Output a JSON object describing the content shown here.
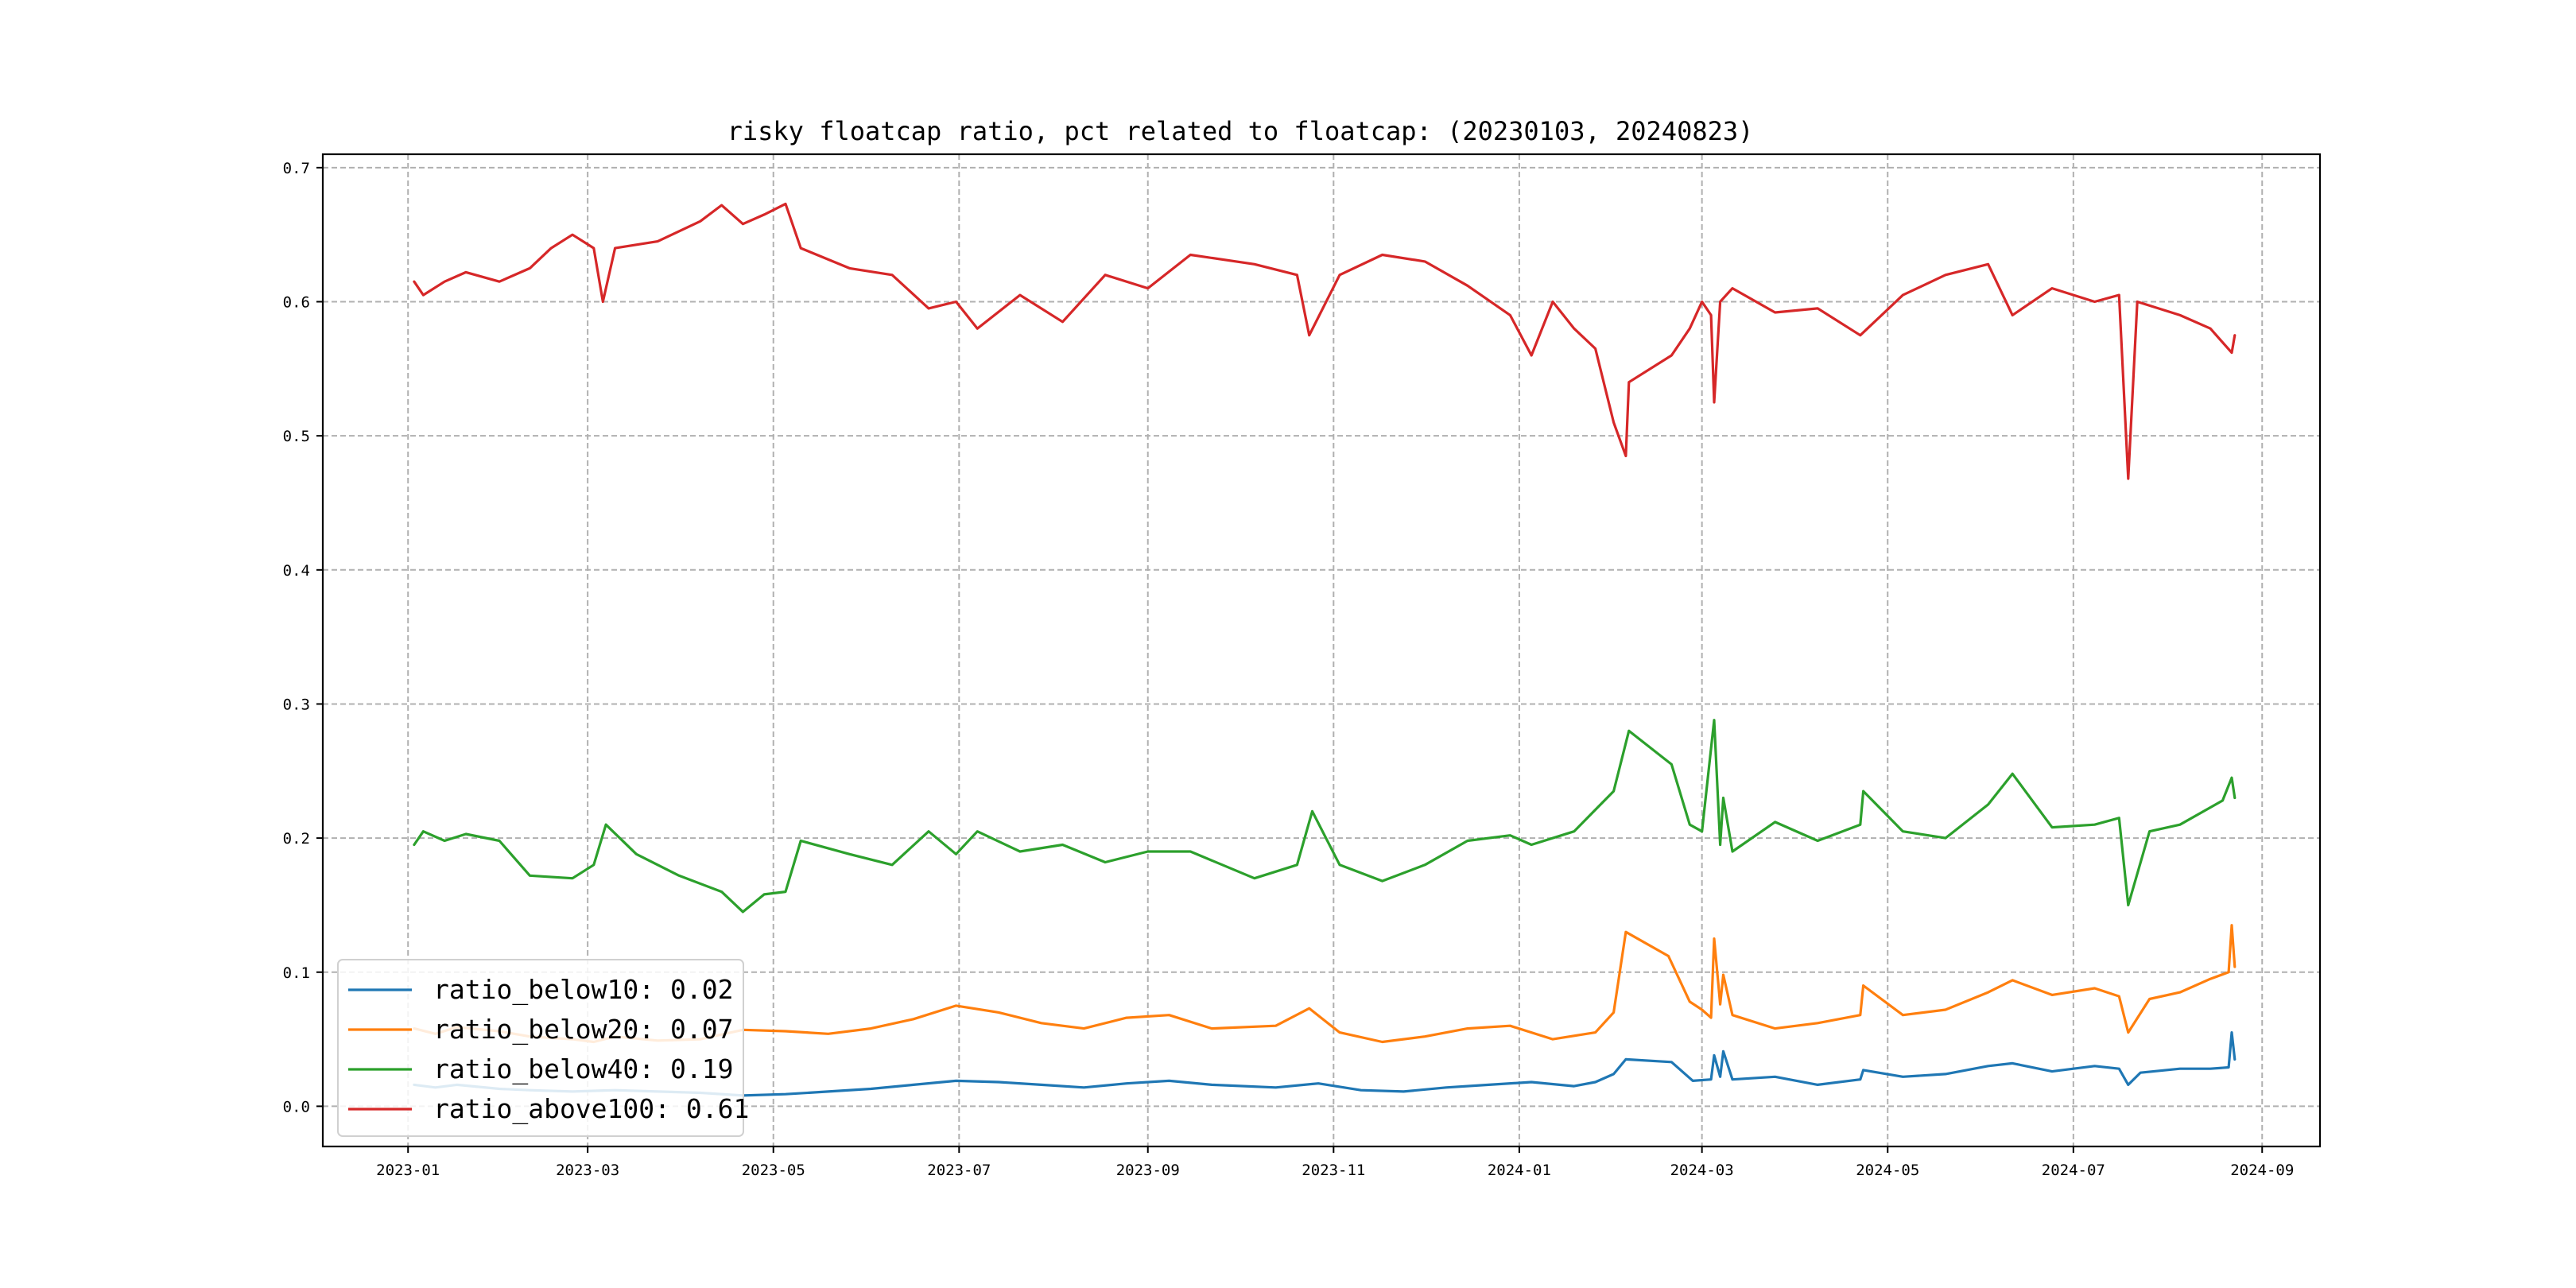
{
  "chart_data": {
    "type": "line",
    "title": "risky floatcap ratio, pct related to floatcap: (20230103, 20240823)",
    "xlabel": "",
    "ylabel": "",
    "xlim": [
      "2022-12-04",
      "2024-09-20"
    ],
    "ylim": [
      -0.03,
      0.71
    ],
    "grid": true,
    "legend_position": "lower-left",
    "x_ticks": [
      {
        "date": "2023-01-01",
        "label": "2023-01"
      },
      {
        "date": "2023-03-01",
        "label": "2023-03"
      },
      {
        "date": "2023-05-01",
        "label": "2023-05"
      },
      {
        "date": "2023-07-01",
        "label": "2023-07"
      },
      {
        "date": "2023-09-01",
        "label": "2023-09"
      },
      {
        "date": "2023-11-01",
        "label": "2023-11"
      },
      {
        "date": "2024-01-01",
        "label": "2024-01"
      },
      {
        "date": "2024-03-01",
        "label": "2024-03"
      },
      {
        "date": "2024-05-01",
        "label": "2024-05"
      },
      {
        "date": "2024-07-01",
        "label": "2024-07"
      },
      {
        "date": "2024-09-01",
        "label": "2024-09"
      }
    ],
    "y_ticks": [
      {
        "value": 0.0,
        "label": "0.0"
      },
      {
        "value": 0.1,
        "label": "0.1"
      },
      {
        "value": 0.2,
        "label": "0.2"
      },
      {
        "value": 0.3,
        "label": "0.3"
      },
      {
        "value": 0.4,
        "label": "0.4"
      },
      {
        "value": 0.5,
        "label": "0.5"
      },
      {
        "value": 0.6,
        "label": "0.6"
      },
      {
        "value": 0.7,
        "label": "0.7"
      }
    ],
    "series": [
      {
        "name": "ratio_below10",
        "legend_label": "ratio_below10: 0.02",
        "color": "#1f77b4",
        "points": [
          [
            "2023-01-03",
            0.016
          ],
          [
            "2023-01-10",
            0.014
          ],
          [
            "2023-01-17",
            0.016
          ],
          [
            "2023-01-31",
            0.013
          ],
          [
            "2023-02-10",
            0.012
          ],
          [
            "2023-02-24",
            0.011
          ],
          [
            "2023-03-10",
            0.012
          ],
          [
            "2023-03-24",
            0.011
          ],
          [
            "2023-04-07",
            0.01
          ],
          [
            "2023-04-21",
            0.008
          ],
          [
            "2023-05-05",
            0.009
          ],
          [
            "2023-05-19",
            0.011
          ],
          [
            "2023-06-02",
            0.013
          ],
          [
            "2023-06-16",
            0.016
          ],
          [
            "2023-06-30",
            0.019
          ],
          [
            "2023-07-14",
            0.018
          ],
          [
            "2023-07-28",
            0.016
          ],
          [
            "2023-08-11",
            0.014
          ],
          [
            "2023-08-25",
            0.017
          ],
          [
            "2023-09-08",
            0.019
          ],
          [
            "2023-09-22",
            0.016
          ],
          [
            "2023-10-13",
            0.014
          ],
          [
            "2023-10-27",
            0.017
          ],
          [
            "2023-11-10",
            0.012
          ],
          [
            "2023-11-24",
            0.011
          ],
          [
            "2023-12-08",
            0.014
          ],
          [
            "2023-12-22",
            0.016
          ],
          [
            "2024-01-05",
            0.018
          ],
          [
            "2024-01-19",
            0.015
          ],
          [
            "2024-01-26",
            0.018
          ],
          [
            "2024-02-01",
            0.024
          ],
          [
            "2024-02-05",
            0.035
          ],
          [
            "2024-02-20",
            0.033
          ],
          [
            "2024-02-27",
            0.019
          ],
          [
            "2024-03-04",
            0.02
          ],
          [
            "2024-03-05",
            0.038
          ],
          [
            "2024-03-07",
            0.022
          ],
          [
            "2024-03-08",
            0.041
          ],
          [
            "2024-03-11",
            0.02
          ],
          [
            "2024-03-25",
            0.022
          ],
          [
            "2024-04-08",
            0.016
          ],
          [
            "2024-04-22",
            0.02
          ],
          [
            "2024-04-23",
            0.027
          ],
          [
            "2024-05-06",
            0.022
          ],
          [
            "2024-05-20",
            0.024
          ],
          [
            "2024-06-03",
            0.03
          ],
          [
            "2024-06-11",
            0.032
          ],
          [
            "2024-06-24",
            0.026
          ],
          [
            "2024-07-08",
            0.03
          ],
          [
            "2024-07-16",
            0.028
          ],
          [
            "2024-07-19",
            0.016
          ],
          [
            "2024-07-23",
            0.025
          ],
          [
            "2024-08-05",
            0.028
          ],
          [
            "2024-08-15",
            0.028
          ],
          [
            "2024-08-21",
            0.029
          ],
          [
            "2024-08-22",
            0.055
          ],
          [
            "2024-08-23",
            0.035
          ]
        ]
      },
      {
        "name": "ratio_below20",
        "legend_label": "ratio_below20: 0.07",
        "color": "#ff7f0e",
        "points": [
          [
            "2023-01-03",
            0.058
          ],
          [
            "2023-01-10",
            0.054
          ],
          [
            "2023-01-17",
            0.059
          ],
          [
            "2023-01-31",
            0.056
          ],
          [
            "2023-02-10",
            0.052
          ],
          [
            "2023-02-24",
            0.05
          ],
          [
            "2023-03-03",
            0.048
          ],
          [
            "2023-03-10",
            0.052
          ],
          [
            "2023-03-24",
            0.049
          ],
          [
            "2023-04-07",
            0.05
          ],
          [
            "2023-04-21",
            0.057
          ],
          [
            "2023-05-05",
            0.056
          ],
          [
            "2023-05-19",
            0.054
          ],
          [
            "2023-06-02",
            0.058
          ],
          [
            "2023-06-16",
            0.065
          ],
          [
            "2023-06-30",
            0.075
          ],
          [
            "2023-07-14",
            0.07
          ],
          [
            "2023-07-28",
            0.062
          ],
          [
            "2023-08-11",
            0.058
          ],
          [
            "2023-08-25",
            0.066
          ],
          [
            "2023-09-08",
            0.068
          ],
          [
            "2023-09-22",
            0.058
          ],
          [
            "2023-10-13",
            0.06
          ],
          [
            "2023-10-24",
            0.073
          ],
          [
            "2023-11-03",
            0.055
          ],
          [
            "2023-11-17",
            0.048
          ],
          [
            "2023-12-01",
            0.052
          ],
          [
            "2023-12-15",
            0.058
          ],
          [
            "2023-12-29",
            0.06
          ],
          [
            "2024-01-12",
            0.05
          ],
          [
            "2024-01-26",
            0.055
          ],
          [
            "2024-02-01",
            0.07
          ],
          [
            "2024-02-05",
            0.13
          ],
          [
            "2024-02-19",
            0.112
          ],
          [
            "2024-02-26",
            0.078
          ],
          [
            "2024-03-01",
            0.072
          ],
          [
            "2024-03-04",
            0.066
          ],
          [
            "2024-03-05",
            0.125
          ],
          [
            "2024-03-07",
            0.076
          ],
          [
            "2024-03-08",
            0.098
          ],
          [
            "2024-03-11",
            0.068
          ],
          [
            "2024-03-25",
            0.058
          ],
          [
            "2024-04-08",
            0.062
          ],
          [
            "2024-04-22",
            0.068
          ],
          [
            "2024-04-23",
            0.09
          ],
          [
            "2024-05-06",
            0.068
          ],
          [
            "2024-05-20",
            0.072
          ],
          [
            "2024-06-03",
            0.085
          ],
          [
            "2024-06-11",
            0.094
          ],
          [
            "2024-06-24",
            0.083
          ],
          [
            "2024-07-08",
            0.088
          ],
          [
            "2024-07-16",
            0.082
          ],
          [
            "2024-07-19",
            0.055
          ],
          [
            "2024-07-26",
            0.08
          ],
          [
            "2024-08-05",
            0.085
          ],
          [
            "2024-08-15",
            0.095
          ],
          [
            "2024-08-21",
            0.1
          ],
          [
            "2024-08-22",
            0.135
          ],
          [
            "2024-08-23",
            0.104
          ]
        ]
      },
      {
        "name": "ratio_below40",
        "legend_label": "ratio_below40: 0.19",
        "color": "#2ca02c",
        "points": [
          [
            "2023-01-03",
            0.195
          ],
          [
            "2023-01-06",
            0.205
          ],
          [
            "2023-01-13",
            0.198
          ],
          [
            "2023-01-20",
            0.203
          ],
          [
            "2023-01-31",
            0.198
          ],
          [
            "2023-02-10",
            0.172
          ],
          [
            "2023-02-24",
            0.17
          ],
          [
            "2023-03-03",
            0.18
          ],
          [
            "2023-03-07",
            0.21
          ],
          [
            "2023-03-17",
            0.188
          ],
          [
            "2023-03-31",
            0.172
          ],
          [
            "2023-04-14",
            0.16
          ],
          [
            "2023-04-21",
            0.145
          ],
          [
            "2023-04-28",
            0.158
          ],
          [
            "2023-05-05",
            0.16
          ],
          [
            "2023-05-10",
            0.198
          ],
          [
            "2023-05-26",
            0.188
          ],
          [
            "2023-06-09",
            0.18
          ],
          [
            "2023-06-21",
            0.205
          ],
          [
            "2023-06-30",
            0.188
          ],
          [
            "2023-07-07",
            0.205
          ],
          [
            "2023-07-21",
            0.19
          ],
          [
            "2023-08-04",
            0.195
          ],
          [
            "2023-08-18",
            0.182
          ],
          [
            "2023-09-01",
            0.19
          ],
          [
            "2023-09-15",
            0.19
          ],
          [
            "2023-10-06",
            0.17
          ],
          [
            "2023-10-20",
            0.18
          ],
          [
            "2023-10-25",
            0.22
          ],
          [
            "2023-11-03",
            0.18
          ],
          [
            "2023-11-17",
            0.168
          ],
          [
            "2023-12-01",
            0.18
          ],
          [
            "2023-12-15",
            0.198
          ],
          [
            "2023-12-29",
            0.202
          ],
          [
            "2024-01-05",
            0.195
          ],
          [
            "2024-01-19",
            0.205
          ],
          [
            "2024-02-01",
            0.235
          ],
          [
            "2024-02-06",
            0.28
          ],
          [
            "2024-02-20",
            0.255
          ],
          [
            "2024-02-26",
            0.21
          ],
          [
            "2024-03-01",
            0.205
          ],
          [
            "2024-03-05",
            0.288
          ],
          [
            "2024-03-07",
            0.195
          ],
          [
            "2024-03-08",
            0.23
          ],
          [
            "2024-03-11",
            0.19
          ],
          [
            "2024-03-25",
            0.212
          ],
          [
            "2024-04-08",
            0.198
          ],
          [
            "2024-04-22",
            0.21
          ],
          [
            "2024-04-23",
            0.235
          ],
          [
            "2024-05-06",
            0.205
          ],
          [
            "2024-05-20",
            0.2
          ],
          [
            "2024-06-03",
            0.225
          ],
          [
            "2024-06-11",
            0.248
          ],
          [
            "2024-06-24",
            0.208
          ],
          [
            "2024-07-08",
            0.21
          ],
          [
            "2024-07-16",
            0.215
          ],
          [
            "2024-07-19",
            0.15
          ],
          [
            "2024-07-26",
            0.205
          ],
          [
            "2024-08-05",
            0.21
          ],
          [
            "2024-08-19",
            0.228
          ],
          [
            "2024-08-22",
            0.245
          ],
          [
            "2024-08-23",
            0.23
          ]
        ]
      },
      {
        "name": "ratio_above100",
        "legend_label": "ratio_above100: 0.61",
        "color": "#d62728",
        "points": [
          [
            "2023-01-03",
            0.615
          ],
          [
            "2023-01-06",
            0.605
          ],
          [
            "2023-01-13",
            0.615
          ],
          [
            "2023-01-20",
            0.622
          ],
          [
            "2023-01-31",
            0.615
          ],
          [
            "2023-02-10",
            0.625
          ],
          [
            "2023-02-17",
            0.64
          ],
          [
            "2023-02-24",
            0.65
          ],
          [
            "2023-03-03",
            0.64
          ],
          [
            "2023-03-06",
            0.6
          ],
          [
            "2023-03-10",
            0.64
          ],
          [
            "2023-03-24",
            0.645
          ],
          [
            "2023-04-07",
            0.66
          ],
          [
            "2023-04-14",
            0.672
          ],
          [
            "2023-04-21",
            0.658
          ],
          [
            "2023-04-28",
            0.665
          ],
          [
            "2023-05-05",
            0.673
          ],
          [
            "2023-05-10",
            0.64
          ],
          [
            "2023-05-26",
            0.625
          ],
          [
            "2023-06-09",
            0.62
          ],
          [
            "2023-06-21",
            0.595
          ],
          [
            "2023-06-30",
            0.6
          ],
          [
            "2023-07-07",
            0.58
          ],
          [
            "2023-07-21",
            0.605
          ],
          [
            "2023-08-04",
            0.585
          ],
          [
            "2023-08-18",
            0.62
          ],
          [
            "2023-09-01",
            0.61
          ],
          [
            "2023-09-15",
            0.635
          ],
          [
            "2023-10-06",
            0.628
          ],
          [
            "2023-10-20",
            0.62
          ],
          [
            "2023-10-24",
            0.575
          ],
          [
            "2023-11-03",
            0.62
          ],
          [
            "2023-11-17",
            0.635
          ],
          [
            "2023-12-01",
            0.63
          ],
          [
            "2023-12-15",
            0.612
          ],
          [
            "2023-12-29",
            0.59
          ],
          [
            "2024-01-05",
            0.56
          ],
          [
            "2024-01-12",
            0.6
          ],
          [
            "2024-01-19",
            0.58
          ],
          [
            "2024-01-26",
            0.565
          ],
          [
            "2024-02-01",
            0.51
          ],
          [
            "2024-02-05",
            0.485
          ],
          [
            "2024-02-06",
            0.54
          ],
          [
            "2024-02-20",
            0.56
          ],
          [
            "2024-02-26",
            0.58
          ],
          [
            "2024-03-01",
            0.6
          ],
          [
            "2024-03-04",
            0.59
          ],
          [
            "2024-03-05",
            0.525
          ],
          [
            "2024-03-07",
            0.6
          ],
          [
            "2024-03-11",
            0.61
          ],
          [
            "2024-03-25",
            0.592
          ],
          [
            "2024-04-08",
            0.595
          ],
          [
            "2024-04-22",
            0.575
          ],
          [
            "2024-05-06",
            0.605
          ],
          [
            "2024-05-20",
            0.62
          ],
          [
            "2024-06-03",
            0.628
          ],
          [
            "2024-06-11",
            0.59
          ],
          [
            "2024-06-24",
            0.61
          ],
          [
            "2024-07-08",
            0.6
          ],
          [
            "2024-07-16",
            0.605
          ],
          [
            "2024-07-19",
            0.468
          ],
          [
            "2024-07-22",
            0.6
          ],
          [
            "2024-08-05",
            0.59
          ],
          [
            "2024-08-15",
            0.58
          ],
          [
            "2024-08-22",
            0.562
          ],
          [
            "2024-08-23",
            0.575
          ]
        ]
      }
    ]
  }
}
